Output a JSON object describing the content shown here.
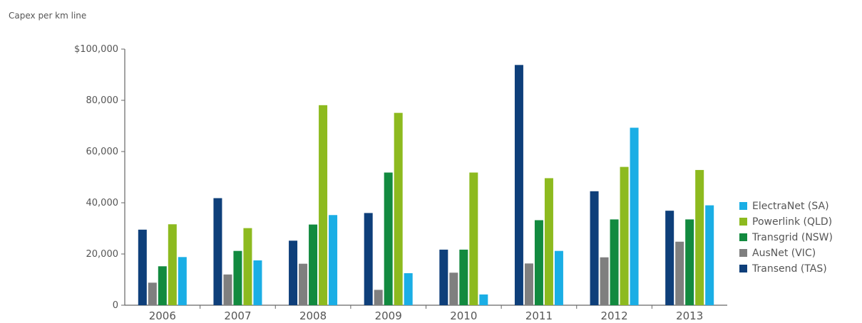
{
  "chart_data": {
    "type": "bar",
    "title": "Capex per km line",
    "xlabel": "",
    "ylabel": "",
    "categories": [
      "2006",
      "2007",
      "2008",
      "2009",
      "2010",
      "2011",
      "2012",
      "2013"
    ],
    "ylim": [
      0,
      100000
    ],
    "yticks": [
      0,
      20000,
      40000,
      60000,
      80000,
      100000
    ],
    "ytick_labels": [
      "0",
      "20,000",
      "40,000",
      "60,000",
      "80,000",
      "$100,000"
    ],
    "grid": false,
    "legend_position": "right",
    "series": [
      {
        "name": "Transend (TAS)",
        "color": "#0e3f7a",
        "values": [
          29500,
          41800,
          25200,
          36000,
          21700,
          93800,
          44500,
          36900
        ]
      },
      {
        "name": "AusNet (VIC)",
        "color": "#7f7f7f",
        "values": [
          8800,
          12000,
          16200,
          6000,
          12700,
          16300,
          18700,
          24800
        ]
      },
      {
        "name": "Transgrid (NSW)",
        "color": "#128a3f",
        "values": [
          15200,
          21200,
          31500,
          51800,
          21700,
          33200,
          33500,
          33500
        ]
      },
      {
        "name": "Powerlink (QLD)",
        "color": "#8dba1f",
        "values": [
          31600,
          30100,
          78100,
          75100,
          51800,
          49600,
          54000,
          52800
        ]
      },
      {
        "name": "ElectraNet (SA)",
        "color": "#1aaee5",
        "values": [
          18800,
          17500,
          35200,
          12500,
          4200,
          21200,
          69300,
          39000
        ]
      }
    ],
    "legend_order": [
      "ElectraNet (SA)",
      "Powerlink (QLD)",
      "Transgrid (NSW)",
      "AusNet (VIC)",
      "Transend (TAS)"
    ]
  }
}
